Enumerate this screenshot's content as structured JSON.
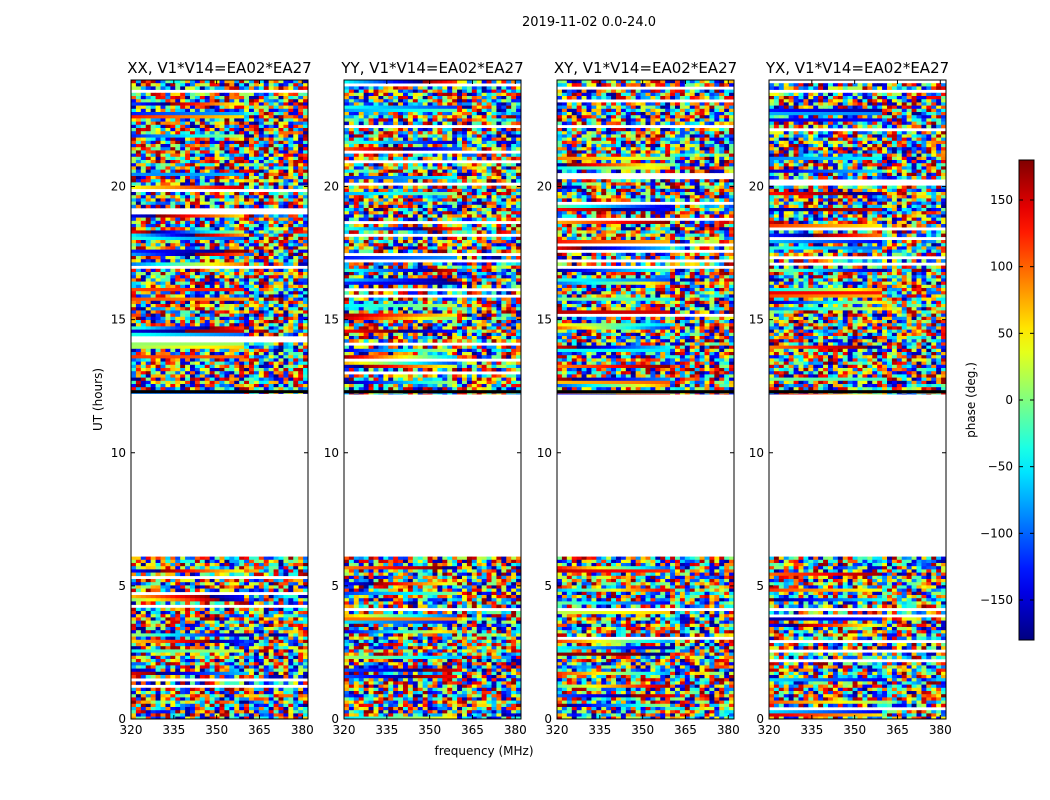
{
  "figure": {
    "suptitle": "2019-11-02 0.0-24.0"
  },
  "chart_data": [
    {
      "type": "heatmap",
      "title": "XX, V1*V14=EA02*EA27",
      "ylabel": "UT (hours)",
      "xlabel": "",
      "xlim": [
        320,
        382
      ],
      "ylim": [
        0,
        24
      ],
      "x_ticks": [
        "320",
        "335",
        "350",
        "365",
        "380"
      ],
      "y_ticks": [
        "0",
        "5",
        "10",
        "15",
        "20"
      ],
      "value_range": [
        -180,
        180
      ],
      "observed_ut_ranges": [
        [
          0.0,
          6.1
        ],
        [
          12.2,
          24.0
        ]
      ]
    },
    {
      "type": "heatmap",
      "title": "YY, V1*V14=EA02*EA27",
      "ylabel": "",
      "xlabel": "frequency (MHz)",
      "xlim": [
        320,
        382
      ],
      "ylim": [
        0,
        24
      ],
      "x_ticks": [
        "320",
        "335",
        "350",
        "365",
        "380"
      ],
      "y_ticks": [
        "0",
        "5",
        "10",
        "15",
        "20"
      ],
      "value_range": [
        -180,
        180
      ],
      "observed_ut_ranges": [
        [
          0.0,
          6.1
        ],
        [
          12.2,
          24.0
        ]
      ]
    },
    {
      "type": "heatmap",
      "title": "XY, V1*V14=EA02*EA27",
      "ylabel": "",
      "xlabel": "",
      "xlim": [
        320,
        382
      ],
      "ylim": [
        0,
        24
      ],
      "x_ticks": [
        "320",
        "335",
        "350",
        "365",
        "380"
      ],
      "y_ticks": [
        "0",
        "5",
        "10",
        "15",
        "20"
      ],
      "value_range": [
        -180,
        180
      ],
      "observed_ut_ranges": [
        [
          0.0,
          6.1
        ],
        [
          12.2,
          24.0
        ]
      ]
    },
    {
      "type": "heatmap",
      "title": "YX, V1*V14=EA02*EA27",
      "ylabel": "",
      "xlabel": "",
      "xlim": [
        320,
        382
      ],
      "ylim": [
        0,
        24
      ],
      "x_ticks": [
        "320",
        "335",
        "350",
        "365",
        "380"
      ],
      "y_ticks": [
        "0",
        "5",
        "10",
        "15",
        "20"
      ],
      "value_range": [
        -180,
        180
      ],
      "observed_ut_ranges": [
        [
          0.0,
          6.1
        ],
        [
          12.2,
          24.0
        ]
      ]
    }
  ],
  "colorbar": {
    "label": "phase (deg.)",
    "range": [
      -180,
      180
    ],
    "ticks": [
      {
        "value": 150,
        "label": "150"
      },
      {
        "value": 100,
        "label": "100"
      },
      {
        "value": 50,
        "label": "50"
      },
      {
        "value": 0,
        "label": "0"
      },
      {
        "value": -50,
        "label": "−50"
      },
      {
        "value": -100,
        "label": "−100"
      },
      {
        "value": -150,
        "label": "−150"
      }
    ],
    "colormap": "jet"
  }
}
